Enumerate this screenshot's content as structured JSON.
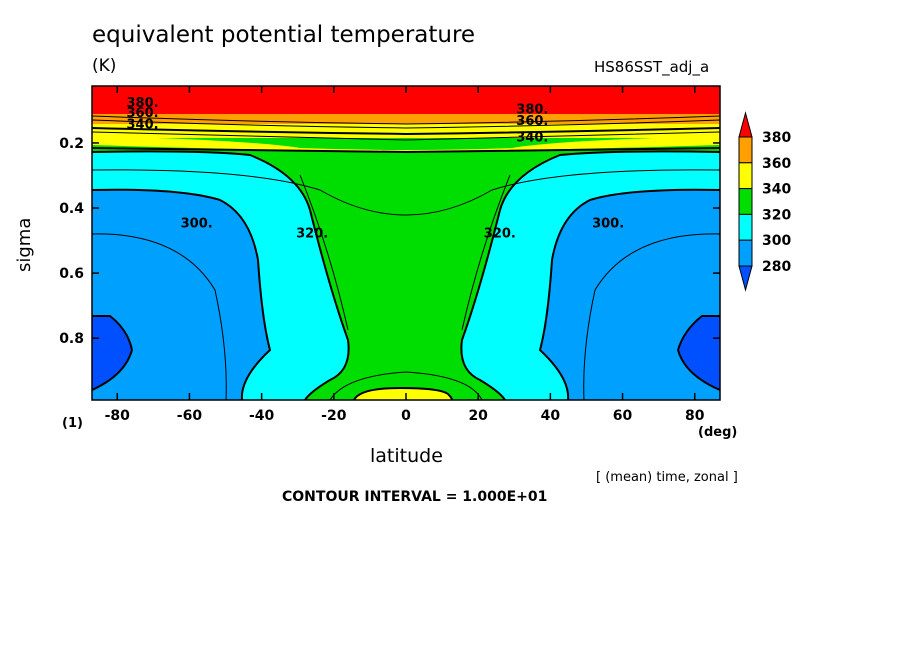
{
  "header": {
    "title": "equivalent potential temperature",
    "units": "(K)",
    "dataset": "HS86SST_adj_a"
  },
  "footer": {
    "note": "[ (mean) time, zonal ]",
    "contour_interval": "CONTOUR INTERVAL = 1.000E+01"
  },
  "chart_data": {
    "type": "contour",
    "title": "equivalent potential temperature",
    "units": "(K)",
    "xlabel": "latitude",
    "xunit": "(deg)",
    "ylabel": "sigma",
    "yunit": "(1)",
    "xlim": [
      -87,
      87
    ],
    "ylim": [
      0.025,
      0.99
    ],
    "yaxis_inverted": true,
    "xticks": [
      -80,
      -60,
      -40,
      -20,
      0,
      20,
      40,
      60,
      80
    ],
    "xtick_labels": [
      "-80",
      "-60",
      "-40",
      "-20",
      "0",
      "20",
      "40",
      "60",
      "80"
    ],
    "yticks": [
      0.2,
      0.4,
      0.6,
      0.8
    ],
    "ytick_labels": [
      "0.2",
      "0.4",
      "0.6",
      "0.8"
    ],
    "contour_interval": 10,
    "colorbar": {
      "levels": [
        280,
        300,
        320,
        340,
        360,
        380
      ],
      "labels": [
        "380",
        "360",
        "340",
        "320",
        "300",
        "280"
      ],
      "colors": [
        "#0050ff",
        "#00a0ff",
        "#00ffff",
        "#00dd00",
        "#ffff00",
        "#ffa000",
        "#ff0000"
      ]
    },
    "band_colors": {
      "below_280": "#0050ff",
      "280_300": "#00a0ff",
      "300_320": "#00ffff",
      "320_340": "#00dd00",
      "340_360": "#ffff00",
      "360_380": "#ffa000",
      "above_380": "#ff0000"
    },
    "contour_labels": [
      {
        "text": "380.",
        "lat": -73,
        "sigma": 0.09
      },
      {
        "text": "360.",
        "lat": -73,
        "sigma": 0.12
      },
      {
        "text": "340.",
        "lat": -73,
        "sigma": 0.155
      },
      {
        "text": "380.",
        "lat": 35,
        "sigma": 0.11
      },
      {
        "text": "360.",
        "lat": 35,
        "sigma": 0.145
      },
      {
        "text": "340.",
        "lat": 35,
        "sigma": 0.195
      },
      {
        "text": "300.",
        "lat": -58,
        "sigma": 0.46
      },
      {
        "text": "320.",
        "lat": -26,
        "sigma": 0.49
      },
      {
        "text": "320.",
        "lat": 26,
        "sigma": 0.49
      },
      {
        "text": "300.",
        "lat": 56,
        "sigma": 0.46
      }
    ]
  }
}
